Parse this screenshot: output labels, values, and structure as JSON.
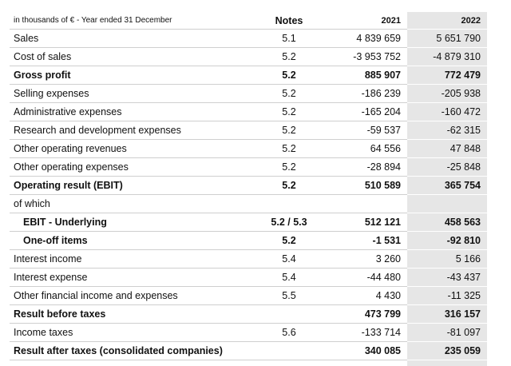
{
  "table": {
    "header": {
      "caption": "in thousands of € - Year ended 31 December",
      "notes": "Notes",
      "y2021": "2021",
      "y2022": "2022"
    },
    "rows": [
      {
        "label": "Sales",
        "notes": "5.1",
        "y2021": "4 839 659",
        "y2022": "5 651 790"
      },
      {
        "label": "Cost of sales",
        "notes": "5.2",
        "y2021": "-3 953 752",
        "y2022": "-4 879 310"
      },
      {
        "label": "Gross profit",
        "notes": "5.2",
        "y2021": "885 907",
        "y2022": "772 479"
      },
      {
        "label": "Selling expenses",
        "notes": "5.2",
        "y2021": "-186 239",
        "y2022": "-205 938"
      },
      {
        "label": "Administrative expenses",
        "notes": "5.2",
        "y2021": "-165 204",
        "y2022": "-160 472"
      },
      {
        "label": "Research and development expenses",
        "notes": "5.2",
        "y2021": "-59 537",
        "y2022": "-62 315"
      },
      {
        "label": "Other operating revenues",
        "notes": "5.2",
        "y2021": "64 556",
        "y2022": "47 848"
      },
      {
        "label": "Other operating expenses",
        "notes": "5.2",
        "y2021": "-28 894",
        "y2022": "-25 848"
      },
      {
        "label": "Operating result (EBIT)",
        "notes": "5.2",
        "y2021": "510 589",
        "y2022": "365 754"
      },
      {
        "label": "of which",
        "notes": null,
        "y2021": null,
        "y2022": null
      },
      {
        "label": "EBIT - Underlying",
        "notes": "5.2 / 5.3",
        "y2021": "512 121",
        "y2022": "458 563"
      },
      {
        "label": "One-off items",
        "notes": "5.2",
        "y2021": "-1 531",
        "y2022": "-92 810"
      },
      {
        "label": "Interest income",
        "notes": "5.4",
        "y2021": "3 260",
        "y2022": "5 166"
      },
      {
        "label": "Interest expense",
        "notes": "5.4",
        "y2021": "-44 480",
        "y2022": "-43 437"
      },
      {
        "label": "Other financial income and expenses",
        "notes": "5.5",
        "y2021": "4 430",
        "y2022": "-11 325"
      },
      {
        "label": "Result before taxes",
        "notes": null,
        "y2021": "473 799",
        "y2022": "316 157"
      },
      {
        "label": "Income taxes",
        "notes": "5.6",
        "y2021": "-133 714",
        "y2022": "-81 097"
      },
      {
        "label": "Result after taxes (consolidated companies)",
        "notes": null,
        "y2021": "340 085",
        "y2022": "235 059"
      }
    ]
  }
}
